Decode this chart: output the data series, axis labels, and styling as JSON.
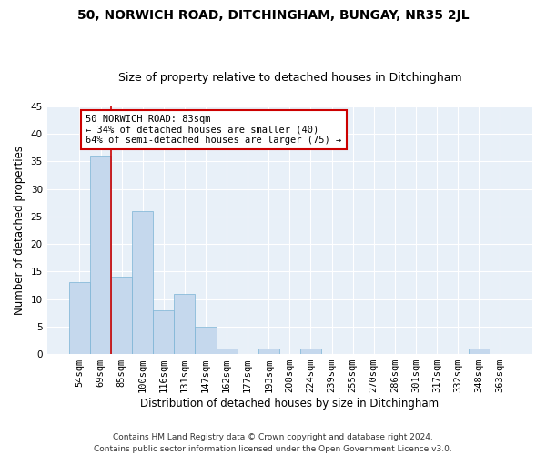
{
  "title": "50, NORWICH ROAD, DITCHINGHAM, BUNGAY, NR35 2JL",
  "subtitle": "Size of property relative to detached houses in Ditchingham",
  "xlabel": "Distribution of detached houses by size in Ditchingham",
  "ylabel": "Number of detached properties",
  "categories": [
    "54sqm",
    "69sqm",
    "85sqm",
    "100sqm",
    "116sqm",
    "131sqm",
    "147sqm",
    "162sqm",
    "177sqm",
    "193sqm",
    "208sqm",
    "224sqm",
    "239sqm",
    "255sqm",
    "270sqm",
    "286sqm",
    "301sqm",
    "317sqm",
    "332sqm",
    "348sqm",
    "363sqm"
  ],
  "values": [
    13,
    36,
    14,
    26,
    8,
    11,
    5,
    1,
    0,
    1,
    0,
    1,
    0,
    0,
    0,
    0,
    0,
    0,
    0,
    1,
    0
  ],
  "bar_color": "#c5d8ed",
  "bar_edge_color": "#7ab3d4",
  "background_color": "#e8f0f8",
  "grid_color": "#ffffff",
  "fig_background": "#ffffff",
  "ylim": [
    0,
    45
  ],
  "yticks": [
    0,
    5,
    10,
    15,
    20,
    25,
    30,
    35,
    40,
    45
  ],
  "vline_x": 1.5,
  "vline_color": "#cc0000",
  "annotation_line1": "50 NORWICH ROAD: 83sqm",
  "annotation_line2": "← 34% of detached houses are smaller (40)",
  "annotation_line3": "64% of semi-detached houses are larger (75) →",
  "annotation_box_color": "#cc0000",
  "footer_text": "Contains HM Land Registry data © Crown copyright and database right 2024.\nContains public sector information licensed under the Open Government Licence v3.0.",
  "title_fontsize": 10,
  "subtitle_fontsize": 9,
  "xlabel_fontsize": 8.5,
  "ylabel_fontsize": 8.5,
  "tick_fontsize": 7.5,
  "annot_fontsize": 7.5,
  "footer_fontsize": 6.5
}
